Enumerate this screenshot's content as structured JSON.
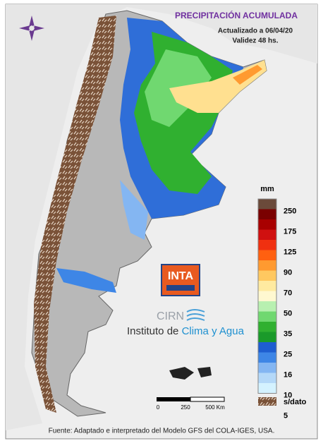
{
  "header": {
    "title": "PRECIPITACIÓN ACUMULADA",
    "updated": "Actualizado a 06/04/20",
    "validity": "Validez 48 hs."
  },
  "legend": {
    "unit": "mm",
    "labels": [
      "250",
      "175",
      "125",
      "90",
      "70",
      "50",
      "35",
      "25",
      "16",
      "10",
      "5"
    ],
    "colors": [
      "#6b4a3a",
      "#7a0000",
      "#a80000",
      "#d01010",
      "#f03010",
      "#ff6010",
      "#ff9a30",
      "#ffc860",
      "#ffeaa0",
      "#fff8d0",
      "#b8f0b0",
      "#70d870",
      "#30b030",
      "#1a9a2a",
      "#1e5ed0",
      "#3e86e6",
      "#84b6f2",
      "#b4d8f8",
      "#d4f2ff"
    ],
    "no_data": "s/dato"
  },
  "scale": {
    "labels": [
      "0",
      "250",
      "500 Km"
    ]
  },
  "logo": {
    "inta": "INTA",
    "cirn": "CIRN",
    "institute": "Instituto de",
    "institute_highlight": "Clima y Agua"
  },
  "footer": "Fuente: Adaptado e interpretado del Modelo GFS del COLA-IGES, USA."
}
